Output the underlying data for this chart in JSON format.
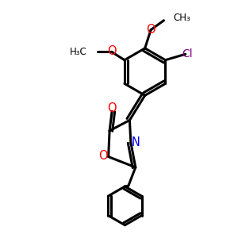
{
  "background_color": "#ffffff",
  "bond_color": "#000000",
  "oxygen_color": "#ff0000",
  "nitrogen_color": "#0000ff",
  "chlorine_color": "#800080",
  "bond_width": 2.2,
  "figsize": [
    3.0,
    3.0
  ],
  "dpi": 100,
  "xlim": [
    0,
    10
  ],
  "ylim": [
    0,
    10
  ]
}
